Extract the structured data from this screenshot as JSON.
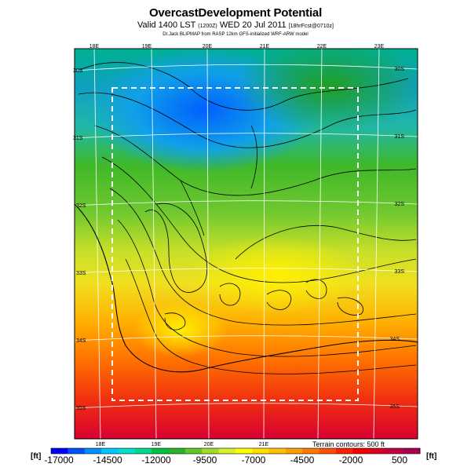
{
  "header": {
    "title": "OvercastDevelopment Potential",
    "subtitle_main": "Valid 1400 LST",
    "subtitle_small1": "(1200Z)",
    "subtitle_date": "WED 20 Jul 2011",
    "subtitle_small2": "[18hrFcst@0710z]",
    "credit": "Dr.Jack BLIPMAP from RASP 12km GFS-initialized WRF-ARW model"
  },
  "map": {
    "lon_labels_top": [
      "18E",
      "19E",
      "20E",
      "21E",
      "22E",
      "23E"
    ],
    "lon_labels_bottom": [
      "18E",
      "19E",
      "20E",
      "21E"
    ],
    "lat_labels_left": [
      "30S",
      "31S",
      "32S",
      "33S",
      "34S",
      "35S"
    ],
    "lat_labels_right": [
      "30S",
      "31S",
      "32S",
      "33S",
      "34S",
      "35S"
    ],
    "terrain_note": "Terrain contours: 500 ft"
  },
  "colorbar": {
    "unit_left": "[ft]",
    "unit_right": "[ft]",
    "labels": [
      "-17000",
      "-14500",
      "-12000",
      "-9500",
      "-7000",
      "-4500",
      "-2000",
      "500"
    ],
    "colors": [
      "#0000ff",
      "#0050ff",
      "#0090ff",
      "#00c8ff",
      "#00e0d0",
      "#00d890",
      "#00c040",
      "#28b428",
      "#60c828",
      "#a0dc28",
      "#d8f028",
      "#ffff00",
      "#ffe000",
      "#ffc000",
      "#ffa000",
      "#ff7800",
      "#ff5000",
      "#ff2000",
      "#f00000",
      "#d80020",
      "#c00040",
      "#a80050"
    ]
  }
}
